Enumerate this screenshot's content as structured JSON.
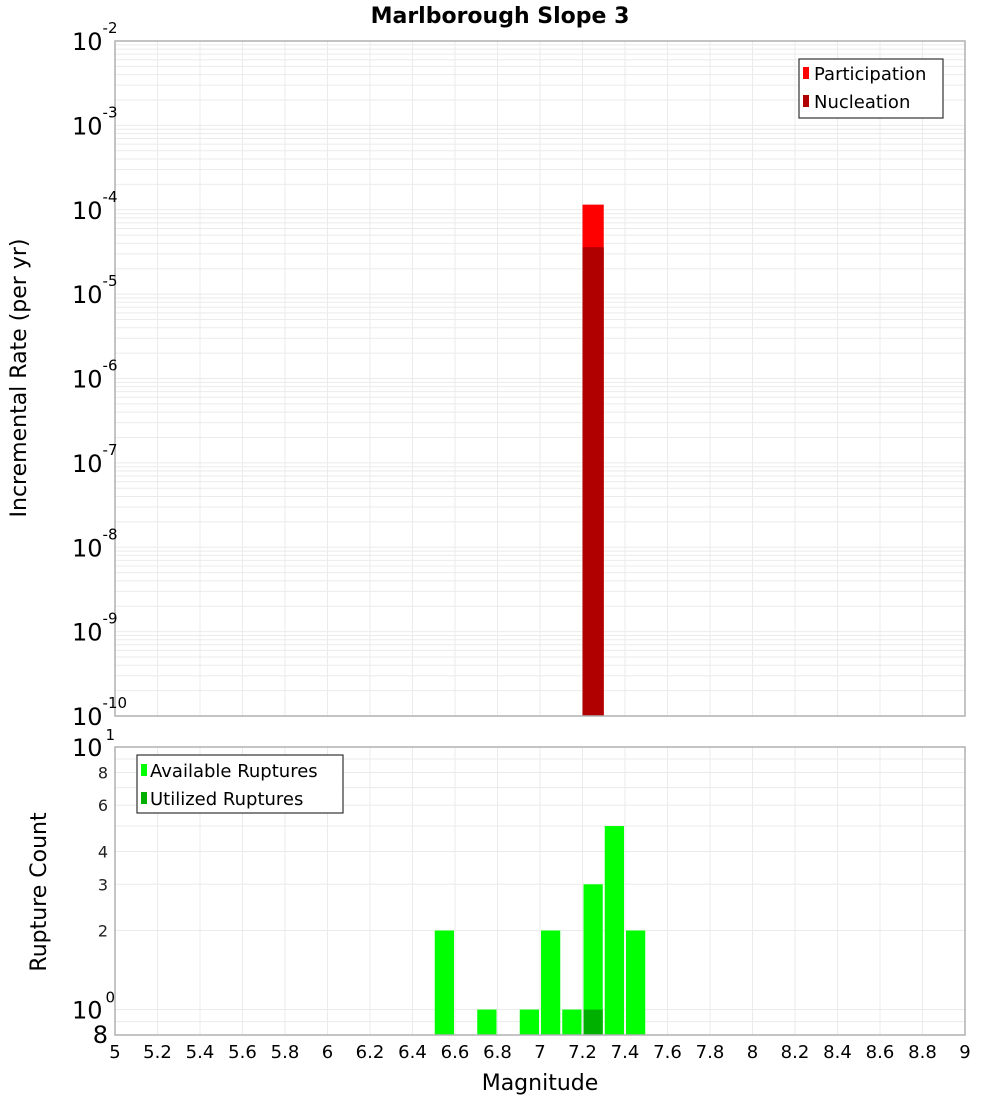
{
  "title": "Marlborough Slope 3",
  "colors": {
    "participation": "#ff0000",
    "nucleation": "#b00000",
    "available": "#00ff00",
    "utilized": "#00b000",
    "grid": "#ebebeb",
    "axis_frame": "#b0b0b0",
    "legend_border": "#333333"
  },
  "chart_data": [
    {
      "type": "bar",
      "title": "Marlborough Slope 3",
      "xlabel": "Magnitude",
      "ylabel": "Incremental Rate (per yr)",
      "yscale": "log",
      "xlim": [
        5,
        9
      ],
      "ylim": [
        1e-10,
        0.01
      ],
      "bin_width": 0.1,
      "grid": true,
      "legend_position": "upper right",
      "legend": [
        "Participation",
        "Nucleation"
      ],
      "y_tick_labels": [
        {
          "base": "10",
          "exp": "-2"
        },
        {
          "base": "10",
          "exp": "-3"
        },
        {
          "base": "10",
          "exp": "-4"
        },
        {
          "base": "10",
          "exp": "-5"
        },
        {
          "base": "10",
          "exp": "-6"
        },
        {
          "base": "10",
          "exp": "-7"
        },
        {
          "base": "10",
          "exp": "-8"
        },
        {
          "base": "10",
          "exp": "-9"
        },
        {
          "base": "10",
          "exp": "-10"
        }
      ],
      "series": [
        {
          "name": "Participation",
          "x": [
            7.25
          ],
          "values": [
            0.000115
          ]
        },
        {
          "name": "Nucleation",
          "x": [
            7.25
          ],
          "values": [
            3.6e-05
          ]
        }
      ]
    },
    {
      "type": "bar",
      "xlabel": "Magnitude",
      "ylabel": "Rupture Count",
      "yscale": "log",
      "xlim": [
        5,
        9
      ],
      "ylim": [
        0.8,
        10
      ],
      "bin_width": 0.1,
      "grid": true,
      "legend_position": "upper left",
      "legend": [
        "Available Ruptures",
        "Utilized Ruptures"
      ],
      "y_tick_labels": [
        {
          "value": 10,
          "base": "10",
          "exp": "1"
        },
        {
          "value": 8,
          "label": "8"
        },
        {
          "value": 6,
          "label": "6"
        },
        {
          "value": 4,
          "label": "4"
        },
        {
          "value": 3,
          "label": "3"
        },
        {
          "value": 2,
          "label": "2"
        },
        {
          "value": 1,
          "base": "10",
          "exp": "0"
        },
        {
          "value": 0.8,
          "label": "8"
        }
      ],
      "x_tick_labels": [
        "5",
        "5.2",
        "5.4",
        "5.6",
        "5.8",
        "6",
        "6.2",
        "6.4",
        "6.6",
        "6.8",
        "7",
        "7.2",
        "7.4",
        "7.6",
        "7.8",
        "8",
        "8.2",
        "8.4",
        "8.6",
        "8.8",
        "9"
      ],
      "series": [
        {
          "name": "Available Ruptures",
          "x": [
            6.55,
            6.75,
            6.95,
            7.05,
            7.15,
            7.25,
            7.35,
            7.45
          ],
          "values": [
            2,
            1,
            1,
            2,
            1,
            3,
            5,
            2
          ]
        },
        {
          "name": "Utilized Ruptures",
          "x": [
            7.25
          ],
          "values": [
            1
          ]
        }
      ]
    }
  ]
}
